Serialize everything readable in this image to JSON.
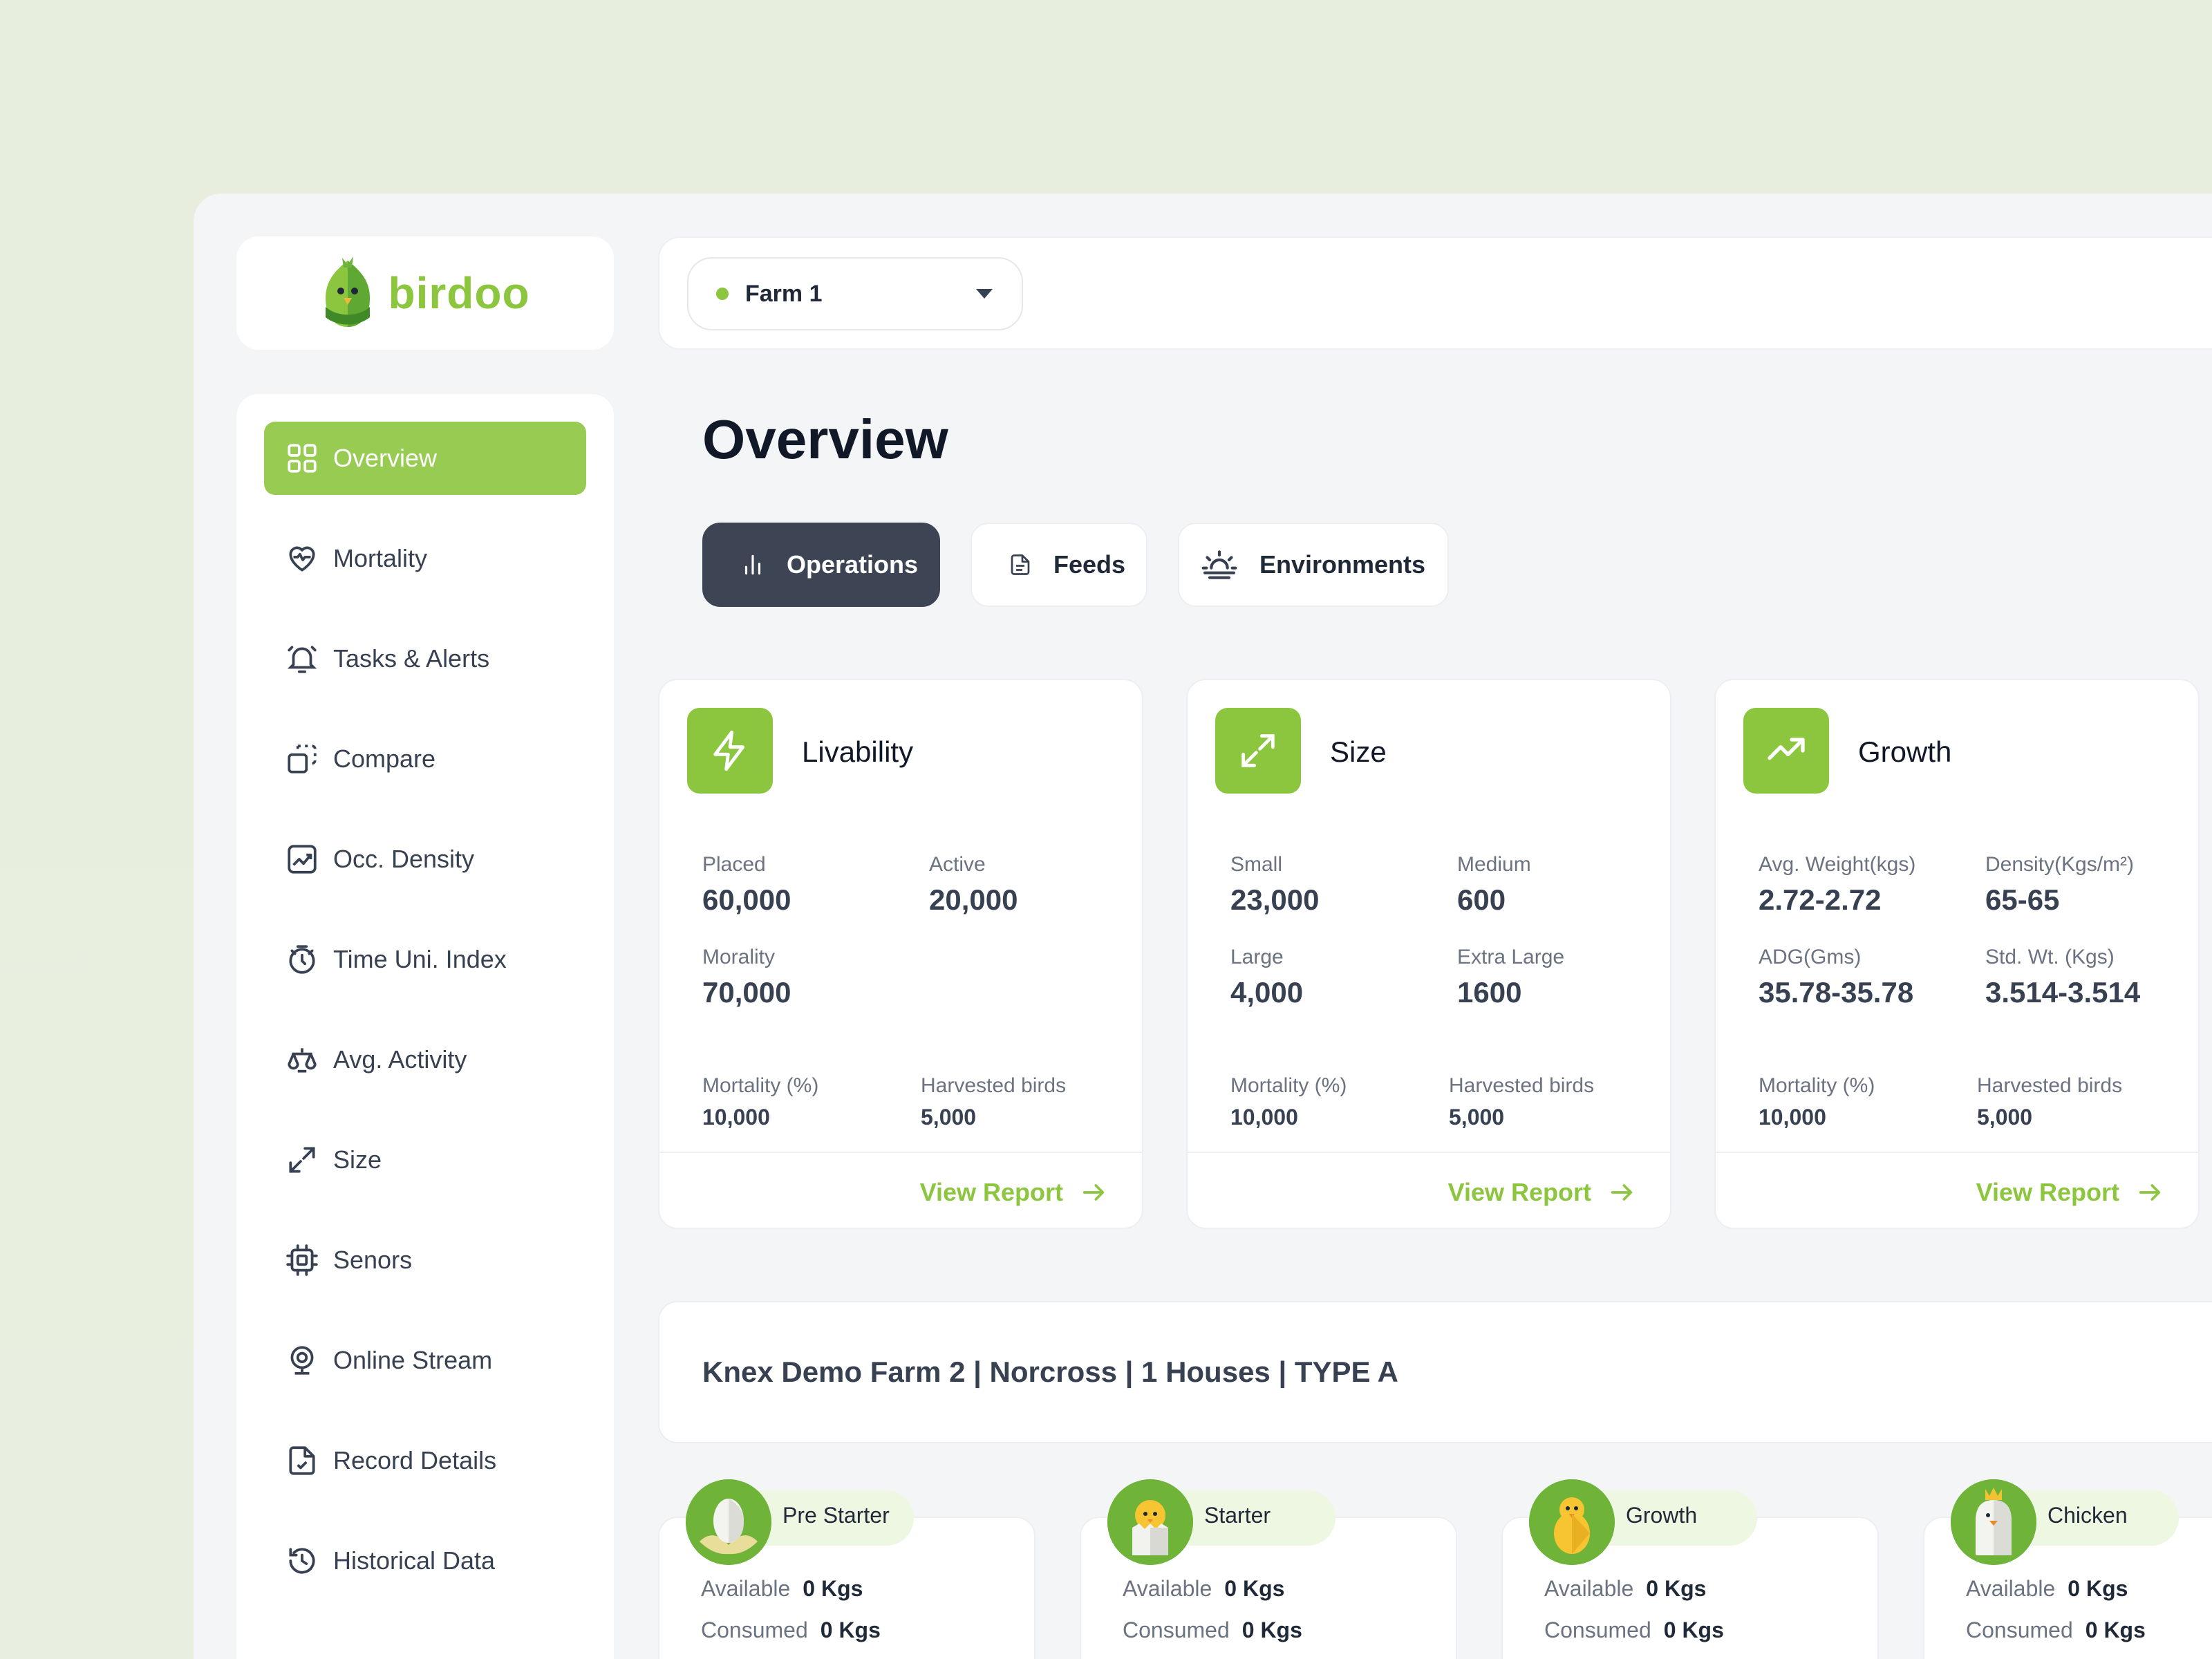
{
  "brand": {
    "name": "birdoo",
    "accent": "#8cc63f",
    "dark": "#3d4554"
  },
  "topbar": {
    "farm_select": "Farm 1",
    "dropdown_icon": "caret-down-icon"
  },
  "sidebar": {
    "items": [
      {
        "label": "Overview",
        "icon": "grid-icon",
        "active": true
      },
      {
        "label": "Mortality",
        "icon": "heart-pulse-icon"
      },
      {
        "label": "Tasks & Alerts",
        "icon": "bell-icon"
      },
      {
        "label": "Compare",
        "icon": "compare-icon"
      },
      {
        "label": "Occ. Density",
        "icon": "chart-box-icon"
      },
      {
        "label": "Time Uni. Index",
        "icon": "timer-icon"
      },
      {
        "label": "Avg. Activity",
        "icon": "scale-icon"
      },
      {
        "label": "Size",
        "icon": "expand-icon"
      },
      {
        "label": "Senors",
        "icon": "chip-icon"
      },
      {
        "label": "Online Stream",
        "icon": "webcam-icon"
      },
      {
        "label": "Record Details",
        "icon": "file-check-icon"
      },
      {
        "label": "Historical Data",
        "icon": "history-icon"
      }
    ]
  },
  "main": {
    "title": "Overview",
    "tabs": [
      {
        "label": "Operations",
        "active": true
      },
      {
        "label": "Feeds"
      },
      {
        "label": "Environments"
      }
    ],
    "cards": [
      {
        "title": "Livability",
        "stats": [
          {
            "label": "Placed",
            "value": "60,000"
          },
          {
            "label": "Active",
            "value": "20,000"
          },
          {
            "label": "Morality",
            "value": "70,000"
          }
        ],
        "footer_stats": [
          {
            "label": "Mortality (%)",
            "value": "10,000"
          },
          {
            "label": "Harvested birds",
            "value": "5,000"
          }
        ],
        "link": "View Report"
      },
      {
        "title": "Size",
        "stats": [
          {
            "label": "Small",
            "value": "23,000"
          },
          {
            "label": "Medium",
            "value": "600"
          },
          {
            "label": "Large",
            "value": "4,000"
          },
          {
            "label": "Extra Large",
            "value": "1600"
          }
        ],
        "footer_stats": [
          {
            "label": "Mortality (%)",
            "value": "10,000"
          },
          {
            "label": "Harvested birds",
            "value": "5,000"
          }
        ],
        "link": "View Report"
      },
      {
        "title": "Growth",
        "stats": [
          {
            "label": "Avg. Weight(kgs)",
            "value": "2.72-2.72"
          },
          {
            "label": "Density(Kgs/m²)",
            "value": "65-65"
          },
          {
            "label": "ADG(Gms)",
            "value": "35.78-35.78"
          },
          {
            "label": "Std. Wt. (Kgs)",
            "value": "3.514-3.514"
          }
        ],
        "footer_stats": [
          {
            "label": "Mortality (%)",
            "value": "10,000"
          },
          {
            "label": "Harvested birds",
            "value": "5,000"
          }
        ],
        "link": "View Report"
      }
    ],
    "farm_info": "Knex Demo Farm 2 | Norcross | 1 Houses | TYPE A",
    "stages": [
      {
        "name": "Pre Starter",
        "available_label": "Available",
        "available": "0 Kgs",
        "consumed_label": "Consumed",
        "consumed": "0 Kgs"
      },
      {
        "name": "Starter",
        "available_label": "Available",
        "available": "0 Kgs",
        "consumed_label": "Consumed",
        "consumed": "0 Kgs"
      },
      {
        "name": "Growth",
        "available_label": "Available",
        "available": "0 Kgs",
        "consumed_label": "Consumed",
        "consumed": "0 Kgs"
      },
      {
        "name": "Chicken",
        "available_label": "Available",
        "available": "0 Kgs",
        "consumed_label": "Consumed",
        "consumed": "0 Kgs"
      }
    ]
  }
}
